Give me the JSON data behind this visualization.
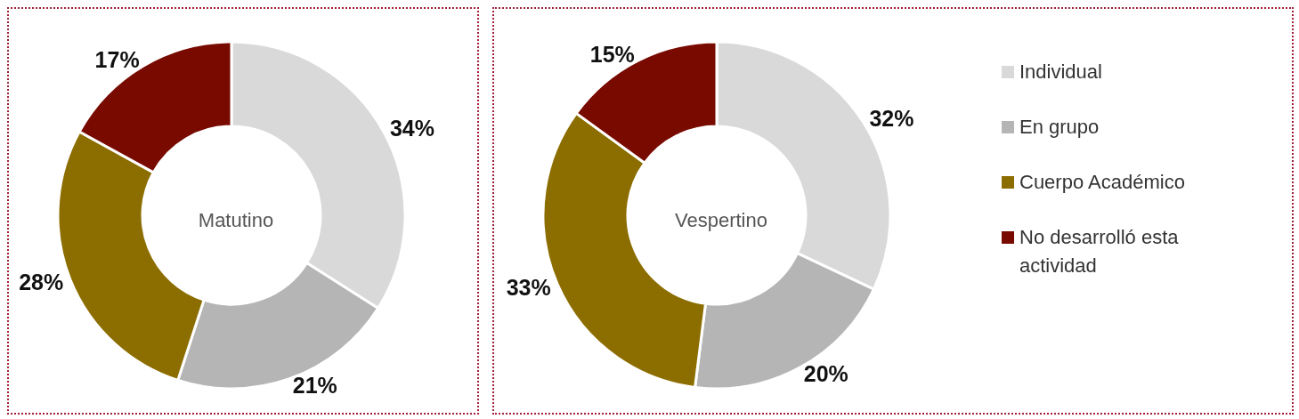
{
  "chart_data": [
    {
      "type": "donut",
      "title": "Matutino",
      "categories": [
        null,
        null,
        null,
        null
      ],
      "values": [
        34,
        21,
        28,
        17
      ],
      "value_labels": [
        "34%",
        "21%",
        "28%",
        "17%"
      ],
      "colors": [
        "#d9d9d9",
        "#b5b5b5",
        "#8c6d00",
        "#780a00"
      ]
    },
    {
      "type": "donut",
      "title": "Vespertino",
      "categories": [
        "Individual",
        "En grupo",
        "Cuerpo Académico",
        "No desarrolló esta actividad"
      ],
      "values": [
        32,
        20,
        33,
        15
      ],
      "value_labels": [
        "32%",
        "20%",
        "33%",
        "15%"
      ],
      "colors": [
        "#d9d9d9",
        "#b5b5b5",
        "#8c6d00",
        "#780a00"
      ],
      "legend": "right"
    }
  ]
}
